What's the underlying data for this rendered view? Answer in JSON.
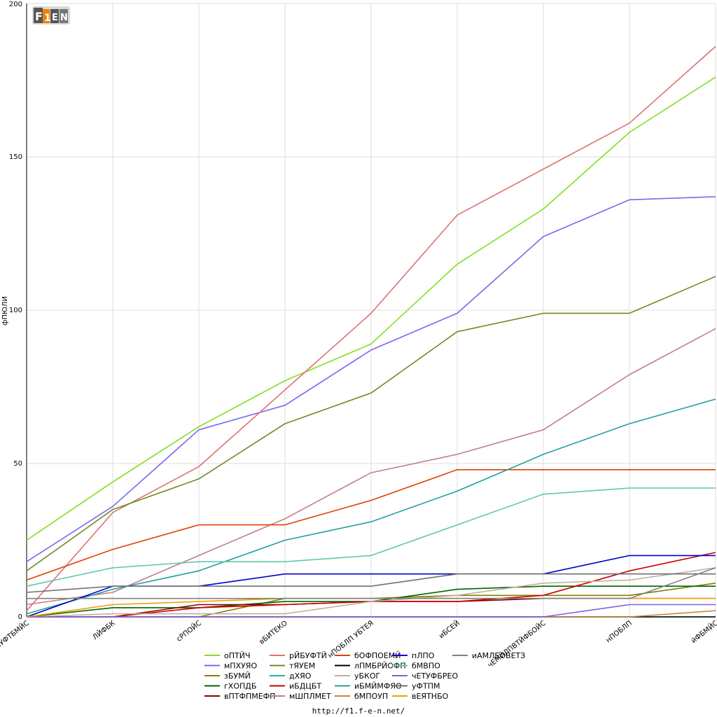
{
  "chart_data": {
    "type": "line",
    "title": "",
    "xlabel": "",
    "ylabel": "фПЮЛИ",
    "ylim": [
      0,
      200
    ],
    "yticks": [
      0,
      50,
      100,
      150,
      200
    ],
    "grid": true,
    "legend_placement": "bottom",
    "categories": [
      "бЧУФТБМЙС",
      "ЛЙФБК",
      "сРПОЙС",
      "вБИТЕКО",
      "нПОБЛП УБТЕЯ",
      "иБСЕЙ",
      "чЕМЙЛПВТЙФБОЙС",
      "нПОБЛП",
      "йФБМЙС"
    ],
    "series": [
      {
        "name": "оПТЙЧ",
        "color": "#7fe020",
        "values": [
          25,
          44,
          62,
          77,
          89,
          115,
          133,
          158,
          176
        ]
      },
      {
        "name": "мПХУЯО",
        "color": "#7b68ee",
        "values": [
          18,
          36,
          61,
          69,
          87,
          99,
          124,
          136,
          137
        ]
      },
      {
        "name": "зБУМЙ",
        "color": "#808000",
        "values": [
          0,
          0,
          0,
          6,
          6,
          7,
          7,
          7,
          11
        ]
      },
      {
        "name": "гХОПДБ",
        "color": "#006400",
        "values": [
          0,
          3,
          3,
          5,
          5,
          9,
          10,
          10,
          10
        ]
      },
      {
        "name": "вПТФПМЕФП",
        "color": "#8b0000",
        "values": [
          0,
          0,
          4,
          4,
          5,
          5,
          6,
          6,
          6
        ]
      },
      {
        "name": "рЙБУФТЙ",
        "color": "#e07070",
        "values": [
          2,
          34,
          49,
          74,
          99,
          131,
          146,
          161,
          186
        ]
      },
      {
        "name": "тЯУЕМ",
        "color": "#6b8e23",
        "values": [
          15,
          35,
          45,
          63,
          73,
          93,
          99,
          99,
          111
        ]
      },
      {
        "name": "дХЯО",
        "color": "#20b2aa",
        "values": [
          0,
          0,
          0,
          0,
          0,
          0,
          0,
          0,
          0
        ]
      },
      {
        "name": "иБДЦБТ",
        "color": "#cc0000",
        "values": [
          0,
          0,
          3,
          4,
          5,
          5,
          7,
          15,
          21
        ]
      },
      {
        "name": "мШПЛМЕТ",
        "color": "#c08080",
        "values": [
          4,
          8,
          20,
          32,
          47,
          53,
          61,
          79,
          94
        ]
      },
      {
        "name": "бОФПОЕМЙ",
        "color": "#e04000",
        "values": [
          12,
          22,
          30,
          30,
          38,
          48,
          48,
          48,
          48
        ]
      },
      {
        "name": "лПМБРЙОФП",
        "color": "#000000",
        "values": [
          0,
          0,
          0,
          0,
          0,
          0,
          0,
          0,
          0
        ]
      },
      {
        "name": "уБКОГ",
        "color": "#c0b0a0",
        "values": [
          0,
          1,
          1,
          1,
          5,
          7,
          11,
          12,
          16
        ]
      },
      {
        "name": "иБМЙМФЯО",
        "color": "#20a0a0",
        "values": [
          1,
          9,
          15,
          25,
          31,
          41,
          53,
          63,
          71
        ]
      },
      {
        "name": "бМПОУП",
        "color": "#cd853f",
        "values": [
          0,
          0,
          0,
          0,
          0,
          0,
          0,
          0,
          2
        ]
      },
      {
        "name": "пЛПО",
        "color": "#0000cc",
        "values": [
          0,
          10,
          10,
          14,
          14,
          14,
          14,
          20,
          20
        ]
      },
      {
        "name": "бМВПО",
        "color": "#60c8a8",
        "values": [
          10,
          16,
          18,
          18,
          20,
          30,
          40,
          42,
          42
        ]
      },
      {
        "name": "чЕТУФБРЕО",
        "color": "#8060e0",
        "values": [
          0,
          0,
          0,
          0,
          0,
          0,
          0,
          4,
          4
        ]
      },
      {
        "name": "уФТПМ",
        "color": "#707070",
        "values": [
          8,
          10,
          10,
          10,
          10,
          14,
          14,
          14,
          14
        ]
      },
      {
        "name": "вЕЯТНБО",
        "color": "#f0a000",
        "values": [
          0,
          4,
          5,
          6,
          6,
          6,
          6,
          6,
          6
        ]
      },
      {
        "name": "иАМЛЕОВЕТЗ",
        "color": "#808080",
        "values": [
          6,
          6,
          6,
          6,
          6,
          6,
          6,
          6,
          16
        ]
      }
    ]
  },
  "footer": {
    "url": "http://f1.f-e-n.net/"
  },
  "logo": {
    "text": "F1EN"
  }
}
